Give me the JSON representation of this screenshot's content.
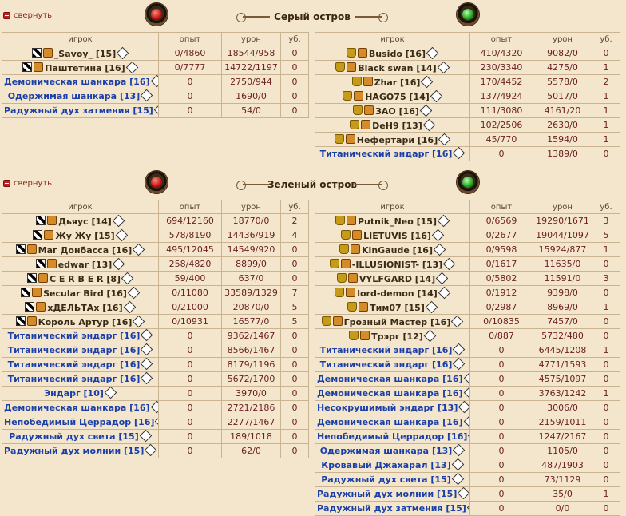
{
  "section1": {
    "collapse_label": "свернуть",
    "title": "Серый остров",
    "headers_left": [
      "игрок",
      "опыт",
      "урон",
      "уб."
    ],
    "headers_right": [
      "игрок",
      "опыт",
      "урон",
      "уб."
    ],
    "left_rows": [
      {
        "player": "_Savoy_ [15]",
        "kind": "player",
        "exp": "0/4860",
        "dmg": "18544/958",
        "kills": "0"
      },
      {
        "player": "Паштетина [16]",
        "kind": "player",
        "exp": "0/7777",
        "dmg": "14722/1197",
        "kills": "0"
      },
      {
        "player": "Демоническая шанкара [16]",
        "kind": "mob",
        "exp": "0",
        "dmg": "2750/944",
        "kills": "0"
      },
      {
        "player": "Одержимая шанкара [13]",
        "kind": "mob",
        "exp": "0",
        "dmg": "1690/0",
        "kills": "0"
      },
      {
        "player": "Радужный дух затмения [15]",
        "kind": "mob",
        "exp": "0",
        "dmg": "54/0",
        "kills": "0"
      }
    ],
    "right_rows": [
      {
        "player": "Busido [16]",
        "kind": "player",
        "exp": "410/4320",
        "dmg": "9082/0",
        "kills": "0"
      },
      {
        "player": "Black swan [14]",
        "kind": "player",
        "exp": "230/3340",
        "dmg": "4275/0",
        "kills": "1"
      },
      {
        "player": "Zhar [16]",
        "kind": "player",
        "exp": "170/4452",
        "dmg": "5578/0",
        "kills": "2"
      },
      {
        "player": "HAGO75 [14]",
        "kind": "player",
        "exp": "137/4924",
        "dmg": "5017/0",
        "kills": "1"
      },
      {
        "player": "ЗАО [16]",
        "kind": "player",
        "exp": "111/3080",
        "dmg": "4161/20",
        "kills": "1"
      },
      {
        "player": "DeH9 [13]",
        "kind": "player",
        "exp": "102/2506",
        "dmg": "2630/0",
        "kills": "1"
      },
      {
        "player": "Нефертари [16]",
        "kind": "player",
        "exp": "45/770",
        "dmg": "1594/0",
        "kills": "1"
      },
      {
        "player": "Титанический эндарг [16]",
        "kind": "mob",
        "exp": "0",
        "dmg": "1389/0",
        "kills": "0"
      }
    ]
  },
  "section2": {
    "collapse_label": "свернуть",
    "title": "Зеленый остров",
    "headers_left": [
      "игрок",
      "опыт",
      "урон",
      "уб."
    ],
    "headers_right": [
      "игрок",
      "опыт",
      "урон",
      "уб."
    ],
    "left_rows": [
      {
        "player": "Дьяус [14]",
        "kind": "player",
        "exp": "694/12160",
        "dmg": "18770/0",
        "kills": "2"
      },
      {
        "player": "Жу Жу [15]",
        "kind": "player",
        "exp": "578/8190",
        "dmg": "14436/919",
        "kills": "4"
      },
      {
        "player": "Маг Донбасса [16]",
        "kind": "player",
        "exp": "495/12045",
        "dmg": "14549/920",
        "kills": "0"
      },
      {
        "player": "edwar [13]",
        "kind": "player",
        "exp": "258/4820",
        "dmg": "8899/0",
        "kills": "0"
      },
      {
        "player": "C E R B E R [8]",
        "kind": "player",
        "exp": "59/400",
        "dmg": "637/0",
        "kills": "0"
      },
      {
        "player": "Secular Bird [16]",
        "kind": "player",
        "exp": "0/11080",
        "dmg": "33589/1329",
        "kills": "7"
      },
      {
        "player": "хДЕЛЬТАх [16]",
        "kind": "player",
        "exp": "0/21000",
        "dmg": "20870/0",
        "kills": "5"
      },
      {
        "player": "Король Артур [16]",
        "kind": "player",
        "exp": "0/10931",
        "dmg": "16577/0",
        "kills": "5"
      },
      {
        "player": "Титанический эндарг [16]",
        "kind": "mob",
        "exp": "0",
        "dmg": "9362/1467",
        "kills": "0"
      },
      {
        "player": "Титанический эндарг [16]",
        "kind": "mob",
        "exp": "0",
        "dmg": "8566/1467",
        "kills": "0"
      },
      {
        "player": "Титанический эндарг [16]",
        "kind": "mob",
        "exp": "0",
        "dmg": "8179/1196",
        "kills": "0"
      },
      {
        "player": "Титанический эндарг [16]",
        "kind": "mob",
        "exp": "0",
        "dmg": "5672/1700",
        "kills": "0"
      },
      {
        "player": "Эндарг [10]",
        "kind": "mob",
        "exp": "0",
        "dmg": "3970/0",
        "kills": "0"
      },
      {
        "player": "Демоническая шанкара [16]",
        "kind": "mob",
        "exp": "0",
        "dmg": "2721/2186",
        "kills": "0"
      },
      {
        "player": "Непобедимый Церрадор [16]",
        "kind": "mob",
        "exp": "0",
        "dmg": "2277/1467",
        "kills": "0"
      },
      {
        "player": "Радужный дух света [15]",
        "kind": "mob",
        "exp": "0",
        "dmg": "189/1018",
        "kills": "0"
      },
      {
        "player": "Радужный дух молнии [15]",
        "kind": "mob",
        "exp": "0",
        "dmg": "62/0",
        "kills": "0"
      }
    ],
    "right_rows": [
      {
        "player": "Putnik_Neo [15]",
        "kind": "player",
        "exp": "0/6569",
        "dmg": "19290/1671",
        "kills": "3"
      },
      {
        "player": "LIETUVIS [16]",
        "kind": "player",
        "exp": "0/2677",
        "dmg": "19044/1097",
        "kills": "5"
      },
      {
        "player": "KinGaude [16]",
        "kind": "player",
        "exp": "0/9598",
        "dmg": "15924/877",
        "kills": "1"
      },
      {
        "player": "-ILLUSIONIST- [13]",
        "kind": "player",
        "exp": "0/1617",
        "dmg": "11635/0",
        "kills": "0"
      },
      {
        "player": "VYLFGARD [14]",
        "kind": "player",
        "exp": "0/5802",
        "dmg": "11591/0",
        "kills": "3"
      },
      {
        "player": "lord-demon [14]",
        "kind": "player",
        "exp": "0/1912",
        "dmg": "9398/0",
        "kills": "0"
      },
      {
        "player": "Тим07 [15]",
        "kind": "player",
        "exp": "0/2987",
        "dmg": "8969/0",
        "kills": "1"
      },
      {
        "player": "Грозный Мастер [16]",
        "kind": "player",
        "exp": "0/10835",
        "dmg": "7457/0",
        "kills": "0"
      },
      {
        "player": "Трэрг [12]",
        "kind": "player",
        "exp": "0/887",
        "dmg": "5732/480",
        "kills": "0"
      },
      {
        "player": "Титанический эндарг [16]",
        "kind": "mob",
        "exp": "0",
        "dmg": "6445/1208",
        "kills": "1"
      },
      {
        "player": "Титанический эндарг [16]",
        "kind": "mob",
        "exp": "0",
        "dmg": "4771/1593",
        "kills": "0"
      },
      {
        "player": "Демоническая шанкара [16]",
        "kind": "mob",
        "exp": "0",
        "dmg": "4575/1097",
        "kills": "0"
      },
      {
        "player": "Демоническая шанкара [16]",
        "kind": "mob",
        "exp": "0",
        "dmg": "3763/1242",
        "kills": "1"
      },
      {
        "player": "Несокрушимый эндарг [13]",
        "kind": "mob",
        "exp": "0",
        "dmg": "3006/0",
        "kills": "0"
      },
      {
        "player": "Демоническая шанкара [16]",
        "kind": "mob",
        "exp": "0",
        "dmg": "2159/1011",
        "kills": "0"
      },
      {
        "player": "Непобедимый Церрадор [16]",
        "kind": "mob",
        "exp": "0",
        "dmg": "1247/2167",
        "kills": "0"
      },
      {
        "player": "Одержимая шанкара [13]",
        "kind": "mob",
        "exp": "0",
        "dmg": "1105/0",
        "kills": "0"
      },
      {
        "player": "Кровавый Джахарал [13]",
        "kind": "mob",
        "exp": "0",
        "dmg": "487/1903",
        "kills": "0"
      },
      {
        "player": "Радужный дух света [15]",
        "kind": "mob",
        "exp": "0",
        "dmg": "73/1129",
        "kills": "0"
      },
      {
        "player": "Радужный дух молнии [15]",
        "kind": "mob",
        "exp": "0",
        "dmg": "35/0",
        "kills": "1"
      },
      {
        "player": "Радужный дух затмения [15]",
        "kind": "mob",
        "exp": "0",
        "dmg": "0/0",
        "kills": "0"
      }
    ]
  }
}
